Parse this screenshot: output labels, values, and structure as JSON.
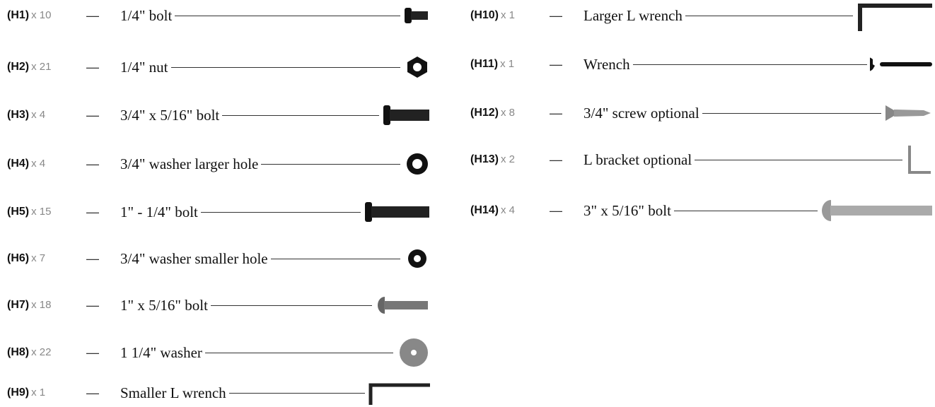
{
  "separator": "—",
  "left": [
    {
      "id": "(H1)",
      "qty": "x 10",
      "desc": "1/4\" bolt"
    },
    {
      "id": "(H2)",
      "qty": "x 21",
      "desc": "1/4\" nut"
    },
    {
      "id": "(H3)",
      "qty": "x 4",
      "desc": "3/4\" x 5/16\" bolt"
    },
    {
      "id": "(H4)",
      "qty": "x 4",
      "desc": "3/4\" washer larger hole"
    },
    {
      "id": "(H5)",
      "qty": "x 15",
      "desc": "1\" - 1/4\" bolt"
    },
    {
      "id": "(H6)",
      "qty": "x 7",
      "desc": "3/4\" washer smaller hole"
    },
    {
      "id": "(H7)",
      "qty": "x 18",
      "desc": "1\" x 5/16\" bolt"
    },
    {
      "id": "(H8)",
      "qty": "x 22",
      "desc": "1 1/4\" washer"
    },
    {
      "id": "(H9)",
      "qty": "x 1",
      "desc": "Smaller L wrench"
    }
  ],
  "right": [
    {
      "id": "(H10)",
      "qty": "x 1",
      "desc": "Larger L wrench"
    },
    {
      "id": "(H11)",
      "qty": "x 1",
      "desc": "Wrench"
    },
    {
      "id": "(H12)",
      "qty": "x 8",
      "desc": "3/4\" screw optional"
    },
    {
      "id": "(H13)",
      "qty": "x 2",
      "desc": "L bracket optional"
    },
    {
      "id": "(H14)",
      "qty": "x 4",
      "desc": "3\" x 5/16\" bolt"
    }
  ]
}
